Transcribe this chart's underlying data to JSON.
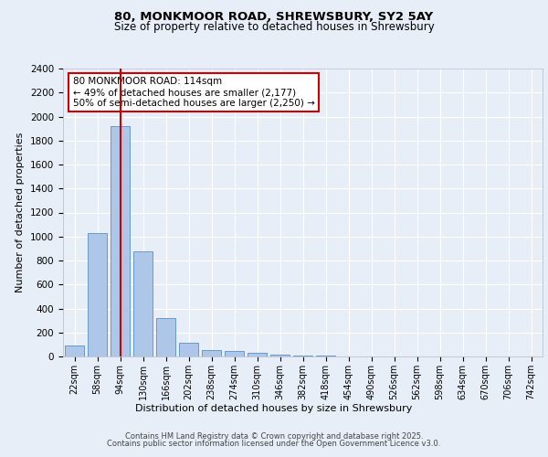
{
  "title_line1": "80, MONKMOOR ROAD, SHREWSBURY, SY2 5AY",
  "title_line2": "Size of property relative to detached houses in Shrewsbury",
  "xlabel": "Distribution of detached houses by size in Shrewsbury",
  "ylabel": "Number of detached properties",
  "bar_labels": [
    "22sqm",
    "58sqm",
    "94sqm",
    "130sqm",
    "166sqm",
    "202sqm",
    "238sqm",
    "274sqm",
    "310sqm",
    "346sqm",
    "382sqm",
    "418sqm",
    "454sqm",
    "490sqm",
    "526sqm",
    "562sqm",
    "598sqm",
    "634sqm",
    "670sqm",
    "706sqm",
    "742sqm"
  ],
  "bar_values": [
    90,
    1030,
    1920,
    880,
    320,
    115,
    50,
    45,
    30,
    15,
    8,
    4,
    2,
    1,
    1,
    0,
    0,
    0,
    0,
    0,
    0
  ],
  "bar_color": "#aec6e8",
  "bar_edge_color": "#5a8fc4",
  "background_color": "#e8eef8",
  "grid_color": "#ffffff",
  "vline_x": 2,
  "vline_color": "#cc0000",
  "annotation_text": "80 MONKMOOR ROAD: 114sqm\n← 49% of detached houses are smaller (2,177)\n50% of semi-detached houses are larger (2,250) →",
  "annotation_box_color": "#ffffff",
  "annotation_box_edge": "#cc0000",
  "ylim": [
    0,
    2400
  ],
  "yticks": [
    0,
    200,
    400,
    600,
    800,
    1000,
    1200,
    1400,
    1600,
    1800,
    2000,
    2200,
    2400
  ],
  "footer_line1": "Contains HM Land Registry data © Crown copyright and database right 2025.",
  "footer_line2": "Contains public sector information licensed under the Open Government Licence v3.0.",
  "title1_fontsize": 9.5,
  "title2_fontsize": 8.5,
  "ylabel_fontsize": 8,
  "xlabel_fontsize": 8,
  "tick_fontsize": 7,
  "footer_fontsize": 6,
  "annot_fontsize": 7.5
}
